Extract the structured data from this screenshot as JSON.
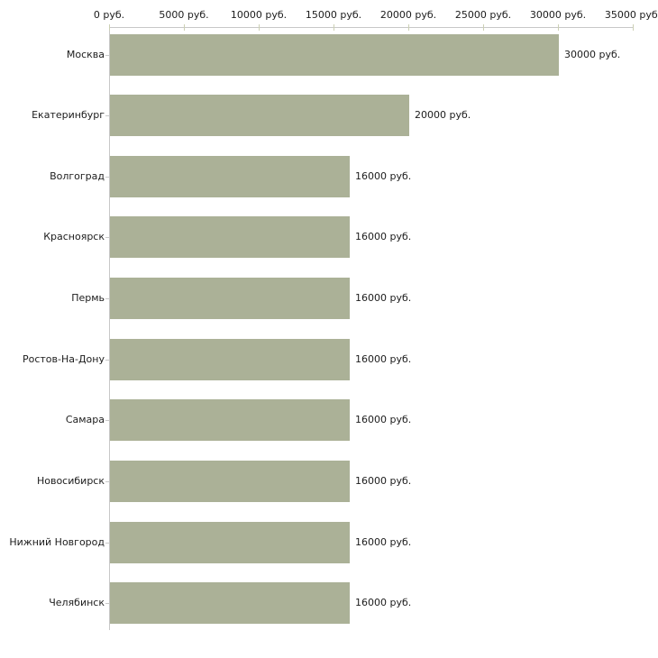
{
  "chart_data": {
    "type": "bar",
    "orientation": "horizontal",
    "title": "",
    "xlabel": "",
    "ylabel": "",
    "unit": "руб.",
    "categories": [
      "Москва",
      "Екатеринбург",
      "Волгоград",
      "Красноярск",
      "Пермь",
      "Ростов-На-Дону",
      "Самара",
      "Новосибирск",
      "Нижний Новгород",
      "Челябинск"
    ],
    "values": [
      30000,
      20000,
      16000,
      16000,
      16000,
      16000,
      16000,
      16000,
      16000,
      16000
    ],
    "value_labels": [
      "30000 руб.",
      "20000 руб.",
      "16000 руб.",
      "16000 руб.",
      "16000 руб.",
      "16000 руб.",
      "16000 руб.",
      "16000 руб.",
      "16000 руб.",
      "16000 руб."
    ],
    "x_tick_values": [
      0,
      5000,
      10000,
      15000,
      20000,
      25000,
      30000,
      35000
    ],
    "x_tick_labels": [
      "0 руб.",
      "5000 руб.",
      "10000 руб.",
      "15000 руб.",
      "20000 руб.",
      "25000 руб.",
      "30000 руб.",
      "35000 руб."
    ],
    "xlim": [
      0,
      35000
    ],
    "grid": false,
    "legend": "none",
    "colors": {
      "bar": "#abb197",
      "axis": "#c8c8c8",
      "x_tick": "#ccd0b4",
      "y_tick": "#c9c9c9",
      "text": "#1c1c1c",
      "background": "#ffffff"
    }
  }
}
